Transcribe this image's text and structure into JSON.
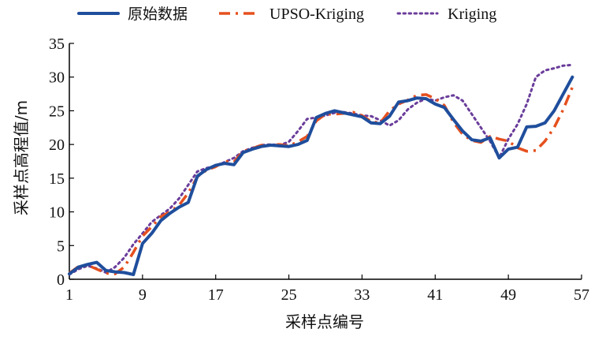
{
  "chart_data": {
    "type": "line",
    "xlabel": "采样点编号",
    "ylabel": "采样点高程值/m",
    "xlim": [
      1,
      57
    ],
    "ylim": [
      0,
      35
    ],
    "xticks": [
      1,
      9,
      17,
      25,
      33,
      41,
      49,
      57
    ],
    "yticks": [
      0,
      5,
      10,
      15,
      20,
      25,
      30,
      35
    ],
    "grid": false,
    "legend": "top",
    "series": [
      {
        "name": "原始数据",
        "color": "#1f4e9c",
        "style": "solid",
        "x": [
          1,
          2,
          3,
          4,
          5,
          6,
          7,
          8,
          9,
          10,
          11,
          12,
          13,
          14,
          15,
          16,
          17,
          18,
          19,
          20,
          21,
          22,
          23,
          24,
          25,
          26,
          27,
          28,
          29,
          30,
          31,
          32,
          33,
          34,
          35,
          36,
          37,
          38,
          39,
          40,
          41,
          42,
          43,
          44,
          45,
          46,
          47,
          48,
          49,
          50,
          51,
          52,
          53,
          54,
          55,
          56
        ],
        "values": [
          0.8,
          1.8,
          2.2,
          2.5,
          1.3,
          1.1,
          1.0,
          0.7,
          5.3,
          6.8,
          8.7,
          9.8,
          10.7,
          11.4,
          15.3,
          16.3,
          16.9,
          17.2,
          17.0,
          18.8,
          19.3,
          19.7,
          19.9,
          19.8,
          19.7,
          20.0,
          20.6,
          24.0,
          24.6,
          25.0,
          24.7,
          24.4,
          24.1,
          23.2,
          23.1,
          24.2,
          26.3,
          26.5,
          26.9,
          26.8,
          26.0,
          25.5,
          23.7,
          22.0,
          20.7,
          20.5,
          21.0,
          18.0,
          19.3,
          19.6,
          22.6,
          22.7,
          23.2,
          25.0,
          27.5,
          30.0
        ]
      },
      {
        "name": "UPSO-Kriging",
        "color": "#e5501e",
        "style": "dashdot",
        "x": [
          1,
          2,
          3,
          4,
          5,
          6,
          7,
          8,
          9,
          10,
          11,
          12,
          13,
          14,
          15,
          16,
          17,
          18,
          19,
          20,
          21,
          22,
          23,
          24,
          25,
          26,
          27,
          28,
          29,
          30,
          31,
          32,
          33,
          34,
          35,
          36,
          37,
          38,
          39,
          40,
          41,
          42,
          43,
          44,
          45,
          46,
          47,
          48,
          49,
          50,
          51,
          52,
          53,
          54,
          55,
          56
        ],
        "values": [
          0.9,
          1.9,
          2.1,
          1.5,
          0.9,
          0.8,
          1.8,
          4.0,
          6.4,
          7.8,
          9.3,
          10.0,
          11.0,
          12.8,
          15.2,
          16.2,
          16.7,
          17.5,
          17.4,
          19.0,
          19.4,
          19.9,
          19.9,
          20.0,
          19.8,
          20.4,
          21.2,
          23.5,
          24.5,
          24.5,
          24.6,
          24.8,
          24.3,
          23.4,
          23.2,
          25.0,
          26.0,
          26.6,
          27.3,
          27.4,
          26.8,
          25.8,
          23.3,
          21.5,
          20.6,
          20.3,
          21.2,
          20.8,
          20.5,
          19.5,
          19.0,
          19.1,
          20.5,
          22.5,
          25.2,
          28.5
        ]
      },
      {
        "name": "Kriging",
        "color": "#6a3d9a",
        "style": "dotted",
        "x": [
          1,
          2,
          3,
          4,
          5,
          6,
          7,
          8,
          9,
          10,
          11,
          12,
          13,
          14,
          15,
          16,
          17,
          18,
          19,
          20,
          21,
          22,
          23,
          24,
          25,
          26,
          27,
          28,
          29,
          30,
          31,
          32,
          33,
          34,
          35,
          36,
          37,
          38,
          39,
          40,
          41,
          42,
          43,
          44,
          45,
          46,
          47,
          48,
          49,
          50,
          51,
          52,
          53,
          54,
          55,
          56
        ],
        "values": [
          0.7,
          1.5,
          2.0,
          1.6,
          1.0,
          1.8,
          3.2,
          5.2,
          6.8,
          8.5,
          9.5,
          10.5,
          12.0,
          14.0,
          16.0,
          16.5,
          16.8,
          17.4,
          18.0,
          19.0,
          19.5,
          19.9,
          20.0,
          19.9,
          20.4,
          22.0,
          23.8,
          24.0,
          24.3,
          24.7,
          24.8,
          24.6,
          24.3,
          24.2,
          23.6,
          22.8,
          23.6,
          25.2,
          26.2,
          26.8,
          26.5,
          27.0,
          27.3,
          26.5,
          24.5,
          22.5,
          20.5,
          18.0,
          20.8,
          23.0,
          26.0,
          30.0,
          31.0,
          31.3,
          31.7,
          31.8
        ]
      }
    ]
  }
}
